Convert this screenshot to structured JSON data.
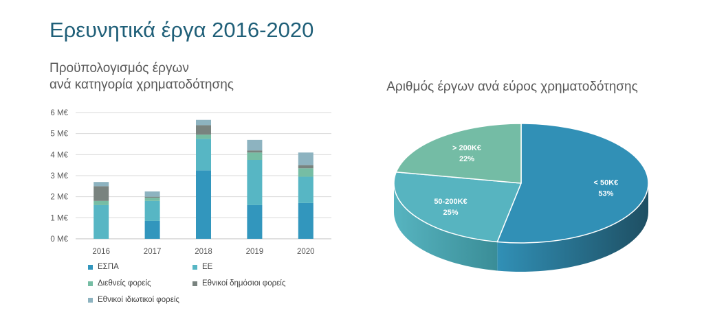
{
  "page": {
    "title": "Ερευνητικά έργα 2016-2020"
  },
  "chart_data": [
    {
      "type": "bar",
      "stacked": true,
      "title_lines": [
        "Προϋπολογισμός έργων",
        "ανά κατηγορία χρηματοδότησης"
      ],
      "categories": [
        "2016",
        "2017",
        "2018",
        "2019",
        "2020"
      ],
      "yticks": [
        "0 M€",
        "1 M€",
        "2 M€",
        "3 M€",
        "4 M€",
        "5 M€",
        "6 M€"
      ],
      "ylim": [
        0,
        6
      ],
      "grid": true,
      "legend_position": "bottom",
      "series": [
        {
          "name": "ΕΣΠΑ",
          "color": "#3296bd",
          "values": [
            0,
            0.85,
            3.25,
            1.6,
            1.7
          ]
        },
        {
          "name": "ΕΕ",
          "color": "#57b6c4",
          "values": [
            1.6,
            0.95,
            1.5,
            2.15,
            1.25
          ]
        },
        {
          "name": "Διεθνείς φορείς",
          "color": "#76bda4",
          "values": [
            0.2,
            0.15,
            0.2,
            0.35,
            0.4
          ]
        },
        {
          "name": "Εθνικοί δημόσιοι φορείς",
          "color": "#79837f",
          "values": [
            0.7,
            0.05,
            0.45,
            0.1,
            0.15
          ]
        },
        {
          "name": "Εθνικοί ιδιωτικοί φορείς",
          "color": "#8db3c0",
          "values": [
            0.2,
            0.25,
            0.25,
            0.5,
            0.6
          ]
        }
      ]
    },
    {
      "type": "pie",
      "title": "Αριθμός έργων ανά εύρος χρηματοδότησης",
      "slices": [
        {
          "label": "< 50K€",
          "percent_label": "53%",
          "value": 53,
          "color": "#3190b6",
          "side_color": "#1e4f63"
        },
        {
          "label": "50-200K€",
          "percent_label": "25%",
          "value": 25,
          "color": "#57b4c0",
          "side_color": "#3a8d97"
        },
        {
          "label": "> 200K€",
          "percent_label": "22%",
          "value": 22,
          "color": "#74bca5",
          "side_color": "#4f9c85"
        }
      ]
    }
  ]
}
